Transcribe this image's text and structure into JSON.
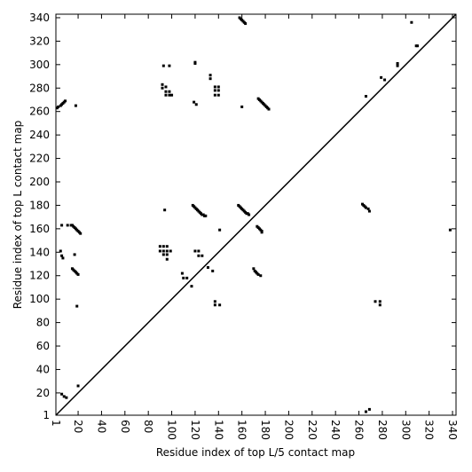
{
  "chart_data": {
    "type": "scatter",
    "xlabel": "Residue index of top L/5 contact map",
    "ylabel": "Residue index of top L contact map",
    "color": "#000000",
    "xlim": [
      1,
      343
    ],
    "ylim": [
      1,
      343
    ],
    "xticks": [
      1,
      20,
      40,
      60,
      80,
      100,
      120,
      140,
      160,
      180,
      200,
      220,
      240,
      260,
      280,
      300,
      320,
      340
    ],
    "yticks": [
      1,
      20,
      40,
      60,
      80,
      100,
      120,
      140,
      160,
      180,
      200,
      220,
      240,
      260,
      280,
      300,
      320,
      340
    ],
    "x": [
      2,
      3,
      5,
      6,
      7,
      8,
      9,
      18,
      158,
      159,
      160,
      161,
      162,
      163,
      93,
      98,
      120,
      120,
      133,
      133,
      92,
      92,
      95,
      95,
      98,
      95,
      98,
      100,
      119,
      121,
      137,
      137,
      140,
      140,
      137,
      140,
      160,
      174,
      175,
      176,
      177,
      178,
      179,
      180,
      181,
      182,
      183,
      118,
      119,
      120,
      121,
      122,
      123,
      124,
      125,
      126,
      127,
      128,
      129,
      157,
      158,
      159,
      160,
      161,
      162,
      163,
      164,
      165,
      166,
      94,
      173,
      174,
      175,
      176,
      177,
      177,
      141,
      6,
      11,
      14,
      15,
      16,
      17,
      18,
      19,
      20,
      21,
      22,
      5,
      6,
      7,
      17,
      90,
      90,
      93,
      93,
      96,
      96,
      93,
      96,
      99,
      96,
      120,
      123,
      123,
      126,
      15,
      16,
      17,
      18,
      19,
      20,
      109,
      110,
      113,
      131,
      135,
      170,
      171,
      172,
      173,
      174,
      176,
      117,
      137,
      137,
      141,
      19,
      20,
      6,
      8,
      10,
      305,
      309,
      310,
      293,
      293,
      266,
      279,
      282,
      263,
      264,
      265,
      266,
      268,
      269,
      338,
      274,
      278,
      278,
      266,
      269
    ],
    "values": [
      263,
      264,
      265,
      266,
      267,
      268,
      269,
      265,
      340,
      339,
      338,
      337,
      336,
      335,
      299,
      299,
      301,
      302,
      291,
      288,
      283,
      280,
      281,
      277,
      277,
      274,
      274,
      274,
      268,
      266,
      274,
      278,
      274,
      278,
      281,
      281,
      264,
      271,
      270,
      269,
      268,
      267,
      266,
      265,
      264,
      263,
      262,
      180,
      179,
      178,
      177,
      176,
      175,
      174,
      173,
      172,
      172,
      171,
      171,
      180,
      179,
      178,
      177,
      176,
      175,
      174,
      173,
      173,
      172,
      176,
      162,
      161,
      160,
      159,
      158,
      157,
      159,
      163,
      163,
      163,
      163,
      162,
      161,
      160,
      159,
      158,
      157,
      156,
      141,
      137,
      135,
      138,
      145,
      141,
      145,
      141,
      141,
      145,
      138,
      138,
      141,
      134,
      141,
      141,
      137,
      137,
      126,
      125,
      124,
      123,
      122,
      121,
      122,
      118,
      118,
      127,
      124,
      126,
      124,
      123,
      122,
      121,
      120,
      111,
      98,
      95,
      95,
      94,
      26,
      19,
      17,
      16,
      336,
      316,
      316,
      301,
      299,
      273,
      289,
      287,
      181,
      180,
      179,
      178,
      177,
      175,
      159,
      98,
      98,
      95,
      4,
      6
    ]
  }
}
